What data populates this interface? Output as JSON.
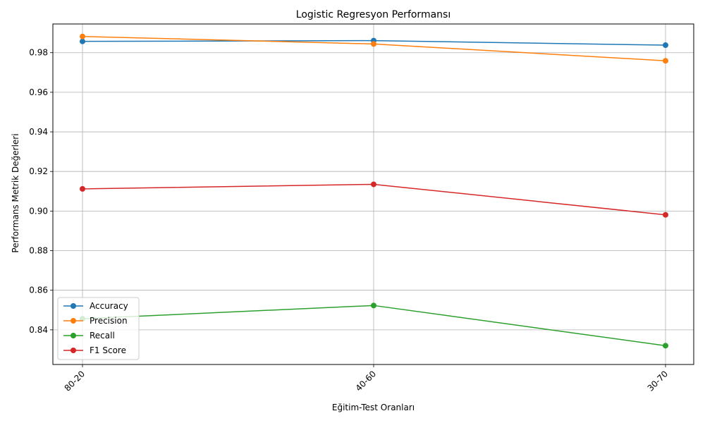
{
  "chart_data": {
    "type": "line",
    "title": "Logistic Regresyon Performansı",
    "xlabel": "Eğitim-Test Oranları",
    "ylabel": "Performans Metrik Değerleri",
    "categories": [
      "80-20",
      "40-60",
      "30-70"
    ],
    "ylim": [
      0.8225,
      0.9945
    ],
    "yticks": [
      0.84,
      0.86,
      0.88,
      0.9,
      0.92,
      0.94,
      0.96,
      0.98
    ],
    "ytick_labels": [
      "0.84",
      "0.86",
      "0.88",
      "0.90",
      "0.92",
      "0.94",
      "0.96",
      "0.98"
    ],
    "grid": true,
    "legend_position": "lower-left",
    "series": [
      {
        "name": "Accuracy",
        "color": "#1f77b4",
        "values": [
          0.9857,
          0.9861,
          0.9838
        ]
      },
      {
        "name": "Precision",
        "color": "#ff7f0e",
        "values": [
          0.9882,
          0.9844,
          0.9759
        ]
      },
      {
        "name": "Recall",
        "color": "#2ca02c",
        "values": [
          0.8456,
          0.8523,
          0.832
        ]
      },
      {
        "name": "F1 Score",
        "color": "#d62728",
        "values": [
          0.9112,
          0.9135,
          0.8981
        ]
      }
    ]
  }
}
